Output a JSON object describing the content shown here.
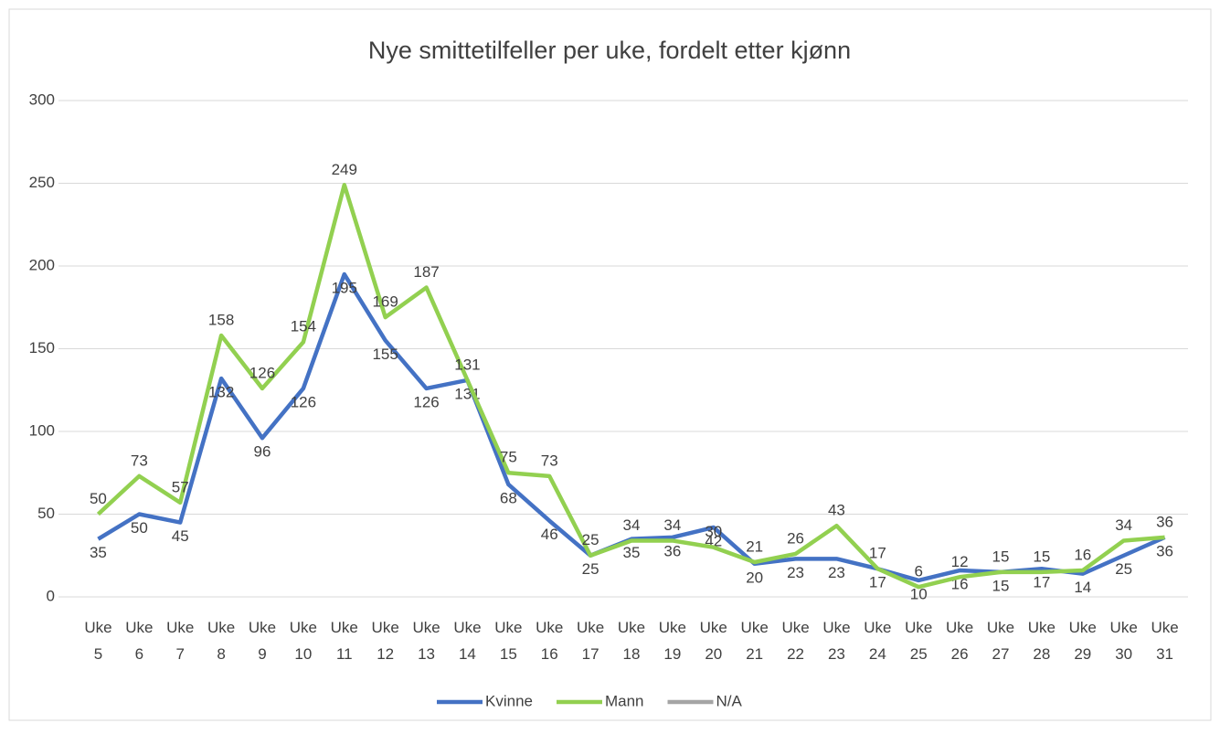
{
  "chart_data": {
    "type": "line",
    "title": "Nye smittetilfeller per uke, fordelt etter kjønn",
    "categories": [
      "Uke 5",
      "Uke 6",
      "Uke 7",
      "Uke 8",
      "Uke 9",
      "Uke 10",
      "Uke 11",
      "Uke 12",
      "Uke 13",
      "Uke 14",
      "Uke 15",
      "Uke 16",
      "Uke 17",
      "Uke 18",
      "Uke 19",
      "Uke 20",
      "Uke 21",
      "Uke 22",
      "Uke 23",
      "Uke 24",
      "Uke 25",
      "Uke 26",
      "Uke 27",
      "Uke 28",
      "Uke 29",
      "Uke 30",
      "Uke 31"
    ],
    "series": [
      {
        "name": "Kvinne",
        "color": "#4472c4",
        "values": [
          35,
          50,
          45,
          132,
          96,
          126,
          195,
          155,
          126,
          131,
          68,
          46,
          25,
          35,
          36,
          42,
          20,
          23,
          23,
          17,
          10,
          16,
          15,
          17,
          14,
          25,
          36
        ]
      },
      {
        "name": "Mann",
        "color": "#92d050",
        "values": [
          50,
          73,
          57,
          158,
          126,
          154,
          249,
          169,
          187,
          131,
          75,
          73,
          25,
          34,
          34,
          30,
          21,
          26,
          43,
          17,
          6,
          12,
          15,
          15,
          16,
          34,
          36
        ]
      },
      {
        "name": "N/A",
        "color": "#a5a5a5",
        "values": [
          null,
          null,
          null,
          null,
          null,
          null,
          null,
          null,
          null,
          null,
          null,
          null,
          null,
          null,
          null,
          null,
          null,
          null,
          null,
          null,
          null,
          null,
          null,
          null,
          null,
          null,
          null
        ]
      }
    ],
    "ylim": [
      0,
      300
    ],
    "yticks": [
      0,
      50,
      100,
      150,
      200,
      250,
      300
    ],
    "grid": true,
    "legend": "bottom"
  }
}
